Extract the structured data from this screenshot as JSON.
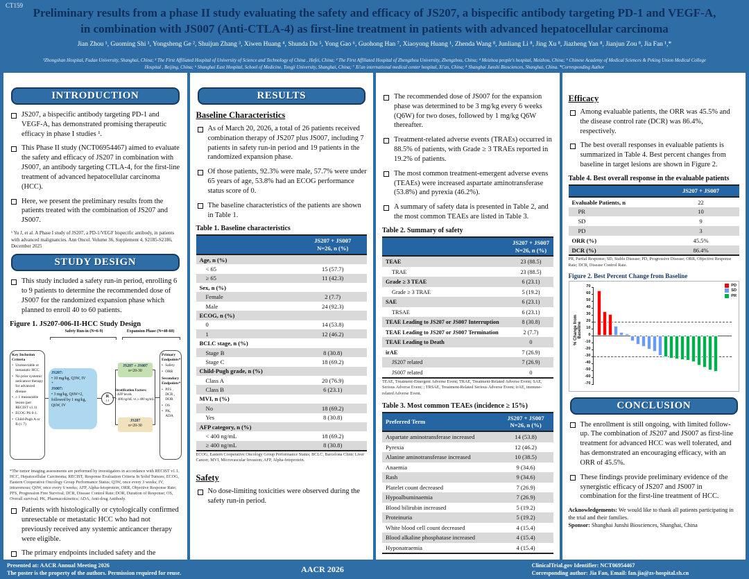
{
  "poster_id": "CT159",
  "header": {
    "title_line1": "Preliminary results from a phase II study evaluating the safety and efficacy of JS207, a bispecific antibody targeting PD-1 and VEGF-A,",
    "title_line2": "in combination with JS007 (Anti-CTLA-4) as first-line treatment in patients with advanced hepatocellular carcinoma",
    "authors": "Jian Zhou ¹, Guoming Shi ¹, Yongsheng Ge ², Shuijun Zhang ³, Xiwen Huang ⁴, Shunda Du ⁵, Yong Gao ⁶, Guohong Han ⁷, Xiaoyong Huang ¹, Zhenda Wang ⁸, Junliang Li ⁸, Jing Xu ⁸, Jiazheng Yan ⁸, Jianjun Zou ⁸, Jia Fan ¹,*",
    "affiliations": "¹Zhongshan Hospital, Fudan University, Shanghai, China; ² The First Affiliated Hospital of University of Science and Technology of China , Hefei, China; ³ The First Affiliated Hospital of Zhengzhou University, Zhengzhou, China; ⁴ Meizhou people's hospital, Meizhou, China; ⁵ Chinese Academy of Medical Sciences & Peking Union Medical College Hospital , Beijing, China; ⁶ Shanghai East Hospital, School of Medicine, Tongji University, Shanghai, China; ⁷ Xi'an international medical center hospital, Xi'an, China; ⁸ Shanghai Junshi Biosciences, Shanghai, China. *Corresponding Author"
  },
  "intro": {
    "heading": "INTRODUCTION",
    "bullets": [
      "JS207, a bispecific antibody targeting PD-1 and VEGF-A, has demonstrated promising therapeutic efficacy in phase I studies ¹.",
      "This Phase II study (NCT06954467) aimed to evaluate the safety and efficacy of JS207 in combination with JS007, an antibody targeting CTLA-4, for the first-line treatment of advanced hepatocellular carcinoma (HCC).",
      "Here, we present the preliminary results from the patients treated with the combination of JS207 and JS007."
    ],
    "footnote": "¹ Yu J, et al. A Phase I study of JS207, a PD-1/VEGF bispecific antibody, in patients with advanced malignancies. Ann Oncol. Volume 36, Supplement 4, S2185-S2186, December 2025"
  },
  "study_design": {
    "heading": "STUDY DESIGN",
    "bullets": [
      "This study included a  safety run-in period, enrolling 6 to 9 patients to determine the recommended dose of JS007 for the randomized expansion phase which planned to enroll 40 to 60 patients."
    ],
    "post_bullets": [
      "Patients with histologically or cytologically confirmed unresectable or metastatic HCC who had not previously received any systemic anticancer therapy were eligible.",
      "The primary endpoints included safety and the objective response rate (ORR)."
    ]
  },
  "figure1": {
    "title": "Figure 1. JS207-006-II-HCC Study Design",
    "bracket_left": "Safety Run-in (N=6-9)",
    "bracket_right": "Expansion Phase (N=40-60)",
    "inclusion_title": "Key Inclusion Criteria",
    "inclusion_items": [
      "Unresectable or metastatic HCC",
      "No prior systemic anticancer therapy for advanced disease",
      "≥ 1 measurable lesion (per RECIST v1.1)",
      "ECOG PS 0-1.",
      "Child-Pugh A or B (≤ 7)"
    ],
    "dose": {
      "js207_label": "JS207:",
      "js207_dose": "10 mg/kg, Q3W, IV",
      "plus": "+",
      "js007_label": "JS007:",
      "js007_dose": "3 mg/kg, Q6W×2, followed by 1 mg/kg, Q6W, IV"
    },
    "randomization": {
      "r": "R",
      "ratio": "1:1"
    },
    "arm1_name": "JS207 + JS007",
    "arm1_n": "n=20-30",
    "strat_title": "Stratification Factors:",
    "strat_item": "AFP levels",
    "strat_detail": "< 400 ng/mL vs ≥ 400 ng/mL",
    "arm2_name": "JS207",
    "arm2_n": "n=20-30",
    "endpoints_primary_title": "Primary Endpoints*",
    "endpoints_primary": [
      "Safety",
      "ORR"
    ],
    "endpoints_secondary_title": "Secondary Endpoints*",
    "endpoints_secondary": [
      "PFS , DCR , DOR",
      "OS",
      "PK,  ADA"
    ],
    "footnote": "*The tumor imaging assessments are performed by investigators in accordance with RECIST v1.1. HCC, Hepatocellular Carcinoma; RECIST, Response Evaluation Criteria In Solid Tumors; ECOG, Eastern Cooperative Oncology Group Performance Status; Q3W, once every 3 weeks; IV, intravenous; Q6W, once every 6 weeks; AFP, Alpha-fetoprotein; ORR, Objective Response Rate; PFS, Progression Free Survival; DCR, Disease Control Rate; DOR, Duration of Response; OS, Overall survival; PK, Pharmacokinetics; ADA, Anti-drug Antibody."
  },
  "results": {
    "heading": "RESULTS",
    "baseline_heading": "Baseline Characteristics",
    "baseline_bullets": [
      "As of March 20, 2026, a total of 26 patients received  combination therapy of JS207 plus JS007, including 7 patients in safety run-in period and 19 patients in the randomized expansion phase.",
      "Of those patients, 92.3% were male, 57.7% were under 65 years of age, 53.8% had an ECOG performance status score of 0.",
      "The baseline characteristics of the patients are shown in Table 1."
    ],
    "safety_heading": "Safety",
    "safety_bullets": [
      "No dose-limiting toxicities were observed during the safety run-in period."
    ],
    "mid_bullets": [
      "The recommended dose of JS007 for the expansion phase was determined to be 3 mg/kg every 6 weeks (Q6W) for two doses, followed by 1 mg/kg Q6W thereafter.",
      "Treatment-related adverse events (TRAEs) occurred in 88.5% of patients, with Grade ≥ 3 TRAEs reported in 19.2% of patients.",
      "The most common treatment-emergent adverse evens (TEAEs) were increased aspartate aminotransferase (53.8%) and pyrexia (46.2%).",
      "A summary of safety data is presented in Table 2, and the most common TEAEs are listed in Table 3."
    ],
    "efficacy_heading": "Efficacy",
    "efficacy_bullets": [
      "Among evaluable patients, the ORR was 45.5% and the disease control rate (DCR) was 86.4%, respectively.",
      "The best overall responses in evaluable patients is summarized in Table 4. Best percent changes from baseline in target lesions are shown in Figure 2."
    ]
  },
  "table1": {
    "title": "Table 1. Baseline characteristics",
    "header_line1": "JS207 + JS007",
    "header_line2": "N=26, n (%)",
    "rows": [
      {
        "label": "Age, n (%)",
        "value": "",
        "type": "group"
      },
      {
        "label": "< 65",
        "value": "15 (57.7)",
        "type": "data"
      },
      {
        "label": "≥ 65",
        "value": "11 (42.3)",
        "type": "data"
      },
      {
        "label": "Sex, n (%)",
        "value": "",
        "type": "group"
      },
      {
        "label": "Female",
        "value": "2 (7.7)",
        "type": "data"
      },
      {
        "label": "Male",
        "value": "24 (92.3)",
        "type": "data"
      },
      {
        "label": "ECOG, n (%)",
        "value": "",
        "type": "group"
      },
      {
        "label": "0",
        "value": "14 (53.8)",
        "type": "data"
      },
      {
        "label": "1",
        "value": "12 (46.2)",
        "type": "data"
      },
      {
        "label": "BCLC stage, n (%)",
        "value": "",
        "type": "group"
      },
      {
        "label": "Stage B",
        "value": "8 (30.8)",
        "type": "data"
      },
      {
        "label": "Stage C",
        "value": "18 (69.2)",
        "type": "data"
      },
      {
        "label": "Child-Pugh grade, n (%)",
        "value": "",
        "type": "group"
      },
      {
        "label": "Class A",
        "value": "20 (76.9)",
        "type": "data"
      },
      {
        "label": "Class B",
        "value": "6 (23.1)",
        "type": "data"
      },
      {
        "label": "MVI, n (%)",
        "value": "",
        "type": "group"
      },
      {
        "label": "No",
        "value": "18 (69.2)",
        "type": "data"
      },
      {
        "label": "Yes",
        "value": "8 (30.8)",
        "type": "data"
      },
      {
        "label": "AFP category, n (%)",
        "value": "",
        "type": "group"
      },
      {
        "label": "< 400 ng/mL",
        "value": "18 (69.2)",
        "type": "data"
      },
      {
        "label": "≥ 400 ng/mL",
        "value": "8 (30.8)",
        "type": "data"
      }
    ],
    "footnote": "ECOG, Eastern Cooperative Oncology Group Performance Status; BCLC, Barcelona Clinic Liver Cancer; MVI, Microvascular Invasion; AFP, Alpha-fetoprotein."
  },
  "table2": {
    "title": "Table 2. Summary of safety",
    "header_line1": "JS207 + JS007",
    "header_line2": "N=26, n (%)",
    "rows": [
      {
        "label": "TEAE",
        "value": "23 (88.5)",
        "type": "group-val"
      },
      {
        "label": "TRAE",
        "value": "23 (88.5)",
        "type": "data"
      },
      {
        "label": "Grade ≥ 3 TEAE",
        "value": "6 (23.1)",
        "type": "group-val"
      },
      {
        "label": "Grade ≥ 3 TRAE",
        "value": "5 (19.2)",
        "type": "data"
      },
      {
        "label": "SAE",
        "value": "6 (23.1)",
        "type": "group-val"
      },
      {
        "label": "TRSAE",
        "value": "6 (23.1)",
        "type": "data"
      },
      {
        "label": "TEAE Leading to JS207 or JS007 Interruption",
        "value": "8 (30.8)",
        "type": "group-val"
      },
      {
        "label": "TEAE Leading to JS207 or JS007 Termination",
        "value": "2 (7.7)",
        "type": "group-val"
      },
      {
        "label": "TEAE Leading to Death",
        "value": "0",
        "type": "group-val"
      },
      {
        "label": "irAE",
        "value": "7 (26.9)",
        "type": "group-val"
      },
      {
        "label": "JS207 related",
        "value": "7 (26.9)",
        "type": "data"
      },
      {
        "label": "JS007 related",
        "value": "0",
        "type": "data"
      }
    ],
    "footnote": "TEAE, Treatment-Emergent Adverse Event; TRAE, Treatment-Related Adverse Event; SAE, Serious Adverse Event; ; TRSAE, Treatment-Related Serious Adverse Event; irAE, immune-related Adverse Event."
  },
  "table3": {
    "title": "Table 3. Most common TEAEs (incidence ≥ 15%)",
    "header_label": "Preferred Term",
    "header_line1": "JS207 + JS007",
    "header_line2": "N=26, n (%)",
    "rows": [
      {
        "label": "Aspartate aminotransferase increased",
        "value": "14 (53.8)",
        "type": "plain"
      },
      {
        "label": "Pyrexia",
        "value": "12 (46.2)",
        "type": "plain"
      },
      {
        "label": "Alanine aminotransferase increased",
        "value": "10 (38.5)",
        "type": "plain"
      },
      {
        "label": "Anaemia",
        "value": "9 (34.6)",
        "type": "plain"
      },
      {
        "label": "Rash",
        "value": "9 (34.6)",
        "type": "plain"
      },
      {
        "label": "Platelet count decreased",
        "value": "7 (26.9)",
        "type": "plain"
      },
      {
        "label": "Hypoalbuminaemia",
        "value": "7 (26.9)",
        "type": "plain"
      },
      {
        "label": "Blood bilirubin increased",
        "value": "5 (19.2)",
        "type": "plain"
      },
      {
        "label": "Proteinuria",
        "value": "5 (19.2)",
        "type": "plain"
      },
      {
        "label": "White blood cell count decreased",
        "value": "4 (15.4)",
        "type": "plain"
      },
      {
        "label": "Blood alkaline phosphatase increased",
        "value": "4 (15.4)",
        "type": "plain"
      },
      {
        "label": "Hyponatraemia",
        "value": "4 (15.4)",
        "type": "plain"
      }
    ]
  },
  "table4": {
    "title": "Table 4. Best overall response in the evaluable patients",
    "header_line1": "JS207 + JS007",
    "rows": [
      {
        "label": "Evaluable Patients, n",
        "value": "22",
        "type": "group-val"
      },
      {
        "label": "PR",
        "value": "10",
        "type": "data"
      },
      {
        "label": "SD",
        "value": "9",
        "type": "data"
      },
      {
        "label": "PD",
        "value": "3",
        "type": "data"
      },
      {
        "label": "ORR (%)",
        "value": "45.5%",
        "type": "group-val"
      },
      {
        "label": "DCR (%)",
        "value": "86.4%",
        "type": "group-val"
      }
    ],
    "footnote": "PR, Partial Response; SD, Stable Disease; PD, Progressive Disease; ORR, Objective Response Rate; DCR, Disease Control Rate."
  },
  "chart_data": {
    "type": "bar",
    "title": "Figure 2. Best Percent Change from Baseline",
    "ylabel": "% Change from Baseline",
    "ylim": [
      -70,
      70
    ],
    "yticks": [
      70,
      60,
      50,
      40,
      30,
      20,
      10,
      0,
      -10,
      -20,
      -30,
      -40,
      -50,
      -60,
      -70
    ],
    "reference_lines": [
      20,
      -30
    ],
    "grid": false,
    "legend_position": "top-right",
    "legend": [
      {
        "label": "PD",
        "color": "#ff0000"
      },
      {
        "label": "SD",
        "color": "#6b9cf2"
      },
      {
        "label": "PR",
        "color": "#00b050"
      }
    ],
    "bars": [
      {
        "value": 65,
        "group": "PD"
      },
      {
        "value": 35,
        "group": "PD"
      },
      {
        "value": 31,
        "group": "PD"
      },
      {
        "value": 14,
        "group": "SD"
      },
      {
        "value": 5,
        "group": "SD"
      },
      {
        "value": 3,
        "group": "SD"
      },
      {
        "value": -8,
        "group": "SD"
      },
      {
        "value": -13,
        "group": "SD"
      },
      {
        "value": -16,
        "group": "SD"
      },
      {
        "value": -20,
        "group": "SD"
      },
      {
        "value": -23,
        "group": "SD"
      },
      {
        "value": -29,
        "group": "SD"
      },
      {
        "value": -31,
        "group": "PR"
      },
      {
        "value": -33,
        "group": "PR"
      },
      {
        "value": -34,
        "group": "PR"
      },
      {
        "value": -35,
        "group": "PR"
      },
      {
        "value": -36,
        "group": "PR"
      },
      {
        "value": -38,
        "group": "PR"
      },
      {
        "value": -43,
        "group": "PR"
      },
      {
        "value": -46,
        "group": "PR"
      },
      {
        "value": -50,
        "group": "PR"
      },
      {
        "value": -52,
        "group": "PR"
      }
    ]
  },
  "conclusion": {
    "heading": "CONCLUSION",
    "bullets": [
      "The enrollment is still ongoing, with limited follow-up. The combination of JS207 and JS007 as first-line treatment for advanced HCC was well tolerated, and has demonstrated an encouraging efficacy, with an ORR of 45.5%.",
      "These findings  provide preliminary evidence of the synergistic efficacy of JS207 and JS007 in combination for the first-line treatment of HCC."
    ],
    "ack_label": "Acknowledgements:",
    "ack_text": " We would like to thank all patients participating in the trial and their families.",
    "sponsor_label": "Sponsor:",
    "sponsor_text": " Shanghai Junshi Biosciences, Shanghai, China"
  },
  "footer": {
    "left_line1": "Presented at: AACR Annual Meeting 2026",
    "left_line2": "The poster is the property of the authors. Permission required for reuse.",
    "center": "AACR 2026",
    "right_line1": "ClinicalTrial.gov Identifier: NCT06954467",
    "right_line2": "Corresponding author: Jia Fan, Email: fan.jia@zs-hospital.sh.cn"
  }
}
